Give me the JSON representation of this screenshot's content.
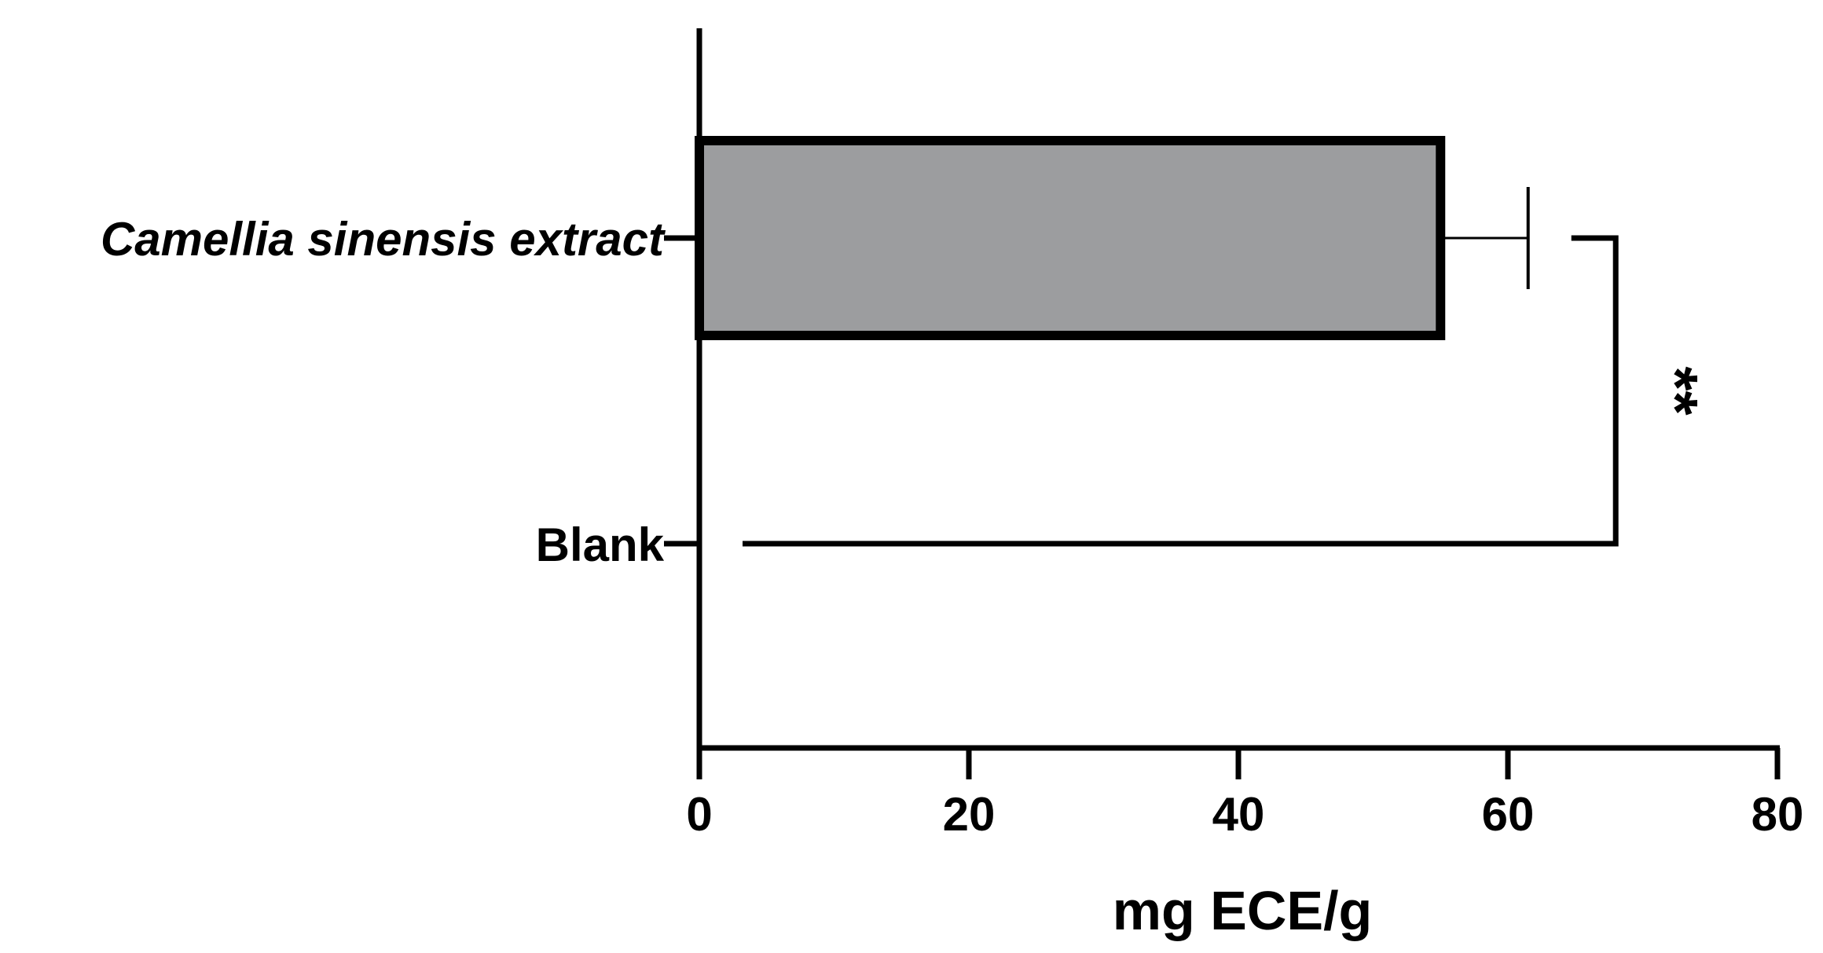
{
  "chart_data": {
    "type": "bar",
    "orientation": "horizontal",
    "categories": [
      "Camellia sinensis extract",
      "Blank"
    ],
    "values": [
      55,
      0
    ],
    "error_upper": [
      6.5,
      null
    ],
    "xlabel": "mg ECE/g",
    "xlim": [
      0,
      80
    ],
    "x_ticks": [
      "0",
      "20",
      "40",
      "60",
      "80"
    ],
    "grid": false,
    "legend": "none",
    "bar_color": "#9c9d9f",
    "significance": {
      "label": "**",
      "between": [
        "Camellia sinensis extract",
        "Blank"
      ],
      "bracket_x": 68
    }
  }
}
